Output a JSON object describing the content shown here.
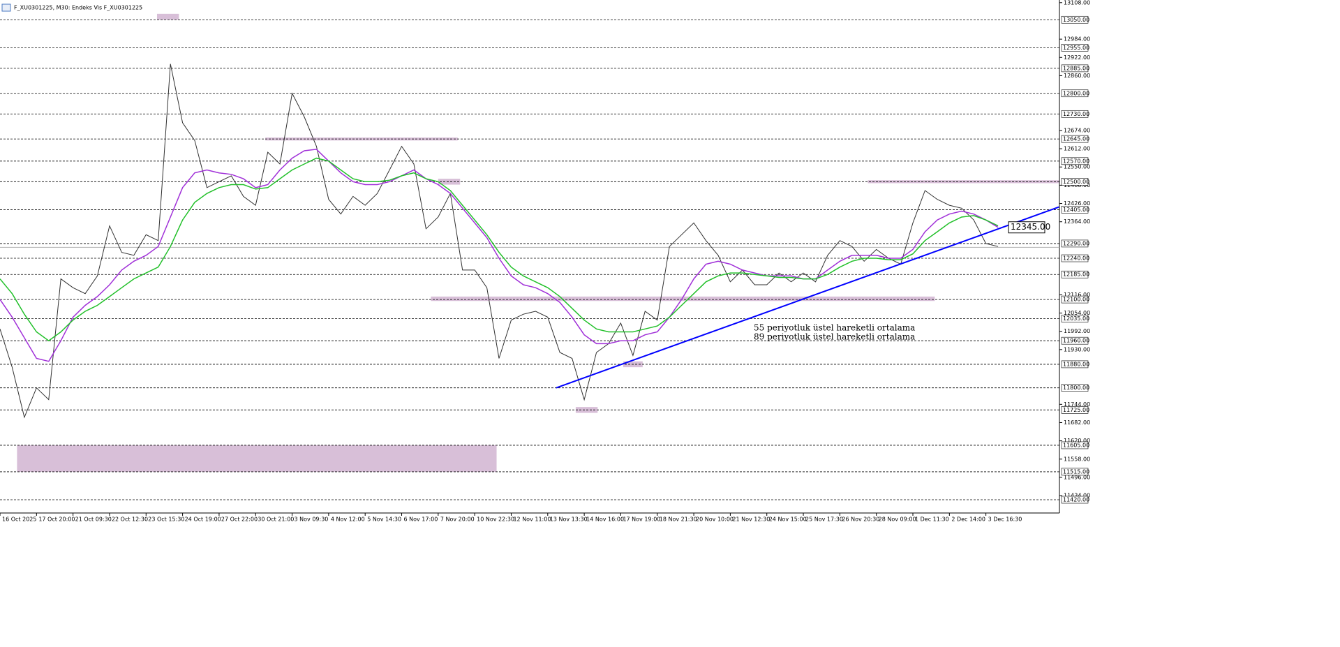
{
  "chart_data": {
    "type": "line",
    "title": "F_XU0301225, M30:  Endeks Vis F_XU0301225",
    "categories": [
      "16 Oct 2025",
      null,
      null,
      "17 Oct 20:00",
      null,
      null,
      "21 Oct 09:30",
      null,
      null,
      "22 Oct 12:30",
      null,
      null,
      "23 Oct 15:30",
      null,
      null,
      "24 Oct 19:00",
      null,
      null,
      "27 Oct 22:00",
      null,
      null,
      "30 Oct 21:00",
      null,
      null,
      "3 Nov 09:30",
      null,
      null,
      "4 Nov 12:00",
      null,
      null,
      "5 Nov 14:30",
      null,
      null,
      "6 Nov 17:00",
      null,
      null,
      "7 Nov 20:00",
      null,
      null,
      "10 Nov 22:30",
      null,
      null,
      "12 Nov 11:00",
      null,
      null,
      "13 Nov 13:30",
      null,
      null,
      "14 Nov 16:00",
      null,
      null,
      "17 Nov 19:00",
      null,
      null,
      "18 Nov 21:30",
      null,
      null,
      "20 Nov 10:00",
      null,
      null,
      "21 Nov 12:30",
      null,
      null,
      "24 Nov 15:00",
      null,
      null,
      "25 Nov 17:30",
      null,
      null,
      "26 Nov 20:30",
      null,
      null,
      "28 Nov 09:00",
      null,
      null,
      "1 Dec 11:30",
      null,
      null,
      "2 Dec 14:00",
      null,
      null,
      "3 Dec 16:30",
      null
    ],
    "series": [
      {
        "color": "#303030",
        "values": [
          12000,
          11870,
          11700,
          11800,
          11760,
          12170,
          12140,
          12120,
          12180,
          12350,
          12260,
          12250,
          12320,
          12300,
          12900,
          12700,
          12640,
          12480,
          12500,
          12520,
          12450,
          12420,
          12600,
          12560,
          12800,
          12720,
          12620,
          12440,
          12390,
          12450,
          12420,
          12460,
          12540,
          12620,
          12560,
          12340,
          12380,
          12460,
          12200,
          12200,
          12140,
          11900,
          12030,
          12050,
          12060,
          12040,
          11920,
          11900,
          11760,
          11920,
          11950,
          12020,
          11910,
          12060,
          12030,
          12280,
          12320,
          12360,
          12300,
          12250,
          12160,
          12200,
          12150,
          12150,
          12190,
          12160,
          12190,
          12160,
          12250,
          12300,
          12280,
          12230,
          12270,
          12240,
          12220,
          12360,
          12470,
          12440,
          12420,
          12410,
          12370,
          12290,
          12280
        ]
      },
      {
        "name": "55 periyotluk üstel hareketli ortalama",
        "color": "#a030d8",
        "values": [
          12100,
          12040,
          11970,
          11900,
          11890,
          11960,
          12040,
          12080,
          12110,
          12150,
          12200,
          12230,
          12250,
          12280,
          12380,
          12480,
          12530,
          12540,
          12530,
          12525,
          12510,
          12480,
          12490,
          12540,
          12580,
          12605,
          12610,
          12570,
          12530,
          12500,
          12490,
          12490,
          12500,
          12520,
          12540,
          12510,
          12490,
          12460,
          12410,
          12360,
          12310,
          12240,
          12180,
          12150,
          12140,
          12120,
          12090,
          12040,
          11980,
          11950,
          11950,
          11960,
          11960,
          11980,
          11990,
          12040,
          12100,
          12170,
          12220,
          12230,
          12220,
          12200,
          12190,
          12180,
          12180,
          12180,
          12170,
          12170,
          12200,
          12230,
          12250,
          12250,
          12250,
          12240,
          12240,
          12270,
          12330,
          12370,
          12390,
          12400,
          12390,
          12370,
          12345
        ]
      },
      {
        "name": "89 periyotluk üstel hareketli ortalama",
        "color": "#22c02a",
        "values": [
          12170,
          12120,
          12050,
          11990,
          11960,
          11990,
          12030,
          12060,
          12080,
          12110,
          12140,
          12170,
          12190,
          12210,
          12280,
          12370,
          12430,
          12460,
          12480,
          12490,
          12490,
          12475,
          12480,
          12510,
          12540,
          12560,
          12580,
          12570,
          12540,
          12510,
          12500,
          12500,
          12505,
          12520,
          12530,
          12510,
          12500,
          12470,
          12420,
          12370,
          12320,
          12260,
          12210,
          12180,
          12160,
          12140,
          12110,
          12070,
          12030,
          12000,
          11990,
          11990,
          11990,
          12000,
          12010,
          12040,
          12080,
          12120,
          12160,
          12180,
          12190,
          12190,
          12185,
          12180,
          12175,
          12175,
          12170,
          12170,
          12185,
          12210,
          12230,
          12240,
          12240,
          12235,
          12235,
          12255,
          12300,
          12330,
          12360,
          12380,
          12385,
          12370,
          12350
        ]
      }
    ],
    "ylim": [
      11375,
      13117
    ],
    "yticks": [
      {
        "value": 13108,
        "label": "13108.00"
      },
      {
        "value": 12984,
        "label": "12984.00"
      },
      {
        "value": 12922,
        "label": "12922.00"
      },
      {
        "value": 12860,
        "label": "12860.00"
      },
      {
        "value": 12674,
        "label": "12674.00"
      },
      {
        "value": 12612,
        "label": "12612.00"
      },
      {
        "value": 12550,
        "label": "12550.00"
      },
      {
        "value": 12488,
        "label": "12488.00"
      },
      {
        "value": 12426,
        "label": "12426.00"
      },
      {
        "value": 12364,
        "label": "12364.00"
      },
      {
        "value": 12116,
        "label": "12116.00"
      },
      {
        "value": 12054,
        "label": "12054.00"
      },
      {
        "value": 11992,
        "label": "11992.00"
      },
      {
        "value": 11930,
        "label": "11930.00"
      },
      {
        "value": 11744,
        "label": "11744.00"
      },
      {
        "value": 11682,
        "label": "11682.00"
      },
      {
        "value": 11620,
        "label": "11620.00"
      },
      {
        "value": 11558,
        "label": "11558.00"
      },
      {
        "value": 11496,
        "label": "11496.00"
      },
      {
        "value": 11434,
        "label": "11434.00"
      }
    ],
    "levels": [
      {
        "value": 13050,
        "label": "13050.00"
      },
      {
        "value": 12955,
        "label": "12955.00"
      },
      {
        "value": 12885,
        "label": "12885.00"
      },
      {
        "value": 12800,
        "label": "12800.00"
      },
      {
        "value": 12730,
        "label": "12730.00"
      },
      {
        "value": 12645,
        "label": "12645.00"
      },
      {
        "value": 12570,
        "label": "12570.00"
      },
      {
        "value": 12500,
        "label": "12500.00"
      },
      {
        "value": 12405,
        "label": "12405.00"
      },
      {
        "value": 12290,
        "label": "12290.00"
      },
      {
        "value": 12240,
        "label": "12240.00"
      },
      {
        "value": 12185,
        "label": "12185.00"
      },
      {
        "value": 12100,
        "label": "12100.00"
      },
      {
        "value": 12035,
        "label": "12035.00"
      },
      {
        "value": 11960,
        "label": "11960.00"
      },
      {
        "value": 11880,
        "label": "11880.00"
      },
      {
        "value": 11800,
        "label": "11800.00"
      },
      {
        "value": 11725,
        "label": "11725.00"
      },
      {
        "value": 11605,
        "label": "11605.00"
      },
      {
        "value": 11515,
        "label": "11515.00"
      },
      {
        "value": 11420,
        "label": "11420.00"
      }
    ],
    "current_price": {
      "value": 12345,
      "label": "12345.00"
    },
    "bid_line": 12277,
    "zones": [
      {
        "x": [
          1.4,
          40.8
        ],
        "y": [
          11515,
          11605
        ]
      },
      {
        "x": [
          12.9,
          14.7
        ],
        "y": [
          13050,
          13070
        ]
      },
      {
        "x": [
          21.8,
          37.6
        ],
        "y": [
          12640,
          12650
        ]
      },
      {
        "x": [
          36.0,
          37.8
        ],
        "y": [
          12490,
          12510
        ]
      },
      {
        "x": [
          35.4,
          76.8
        ],
        "y": [
          12095,
          12110
        ]
      },
      {
        "x": [
          51.2,
          52.8
        ],
        "y": [
          11870,
          11890
        ]
      },
      {
        "x": [
          47.3,
          49.1
        ],
        "y": [
          11715,
          11735
        ]
      },
      {
        "x": [
          71.3,
          87.0
        ],
        "y": [
          12495,
          12505
        ]
      }
    ],
    "zone_color": "#d8bfd8",
    "trendline": {
      "color": "#0000ff",
      "x": [
        45.7,
        87.0
      ],
      "y": [
        11800,
        12414
      ]
    },
    "grid": true
  }
}
